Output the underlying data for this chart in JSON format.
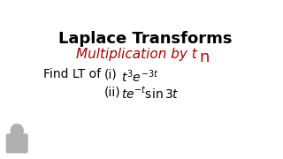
{
  "title": "Laplace Transforms",
  "subtitle_main": "Multiplication by t",
  "subtitle_super": "n",
  "find_text": "Find LT of",
  "item_i_label": "(i)",
  "item_i_math": "$t^3 e^{-3t}$",
  "item_ii_label": "(ii)",
  "item_ii_math": "$te^{-t} \\sin 3t$",
  "title_color": "#000000",
  "subtitle_color": "#aa0000",
  "body_color": "#000000",
  "bg_color": "#ffffff",
  "title_fontsize": 13,
  "subtitle_fontsize": 11,
  "find_fontsize": 10,
  "item_fontsize": 10,
  "super_fontsize": 13
}
